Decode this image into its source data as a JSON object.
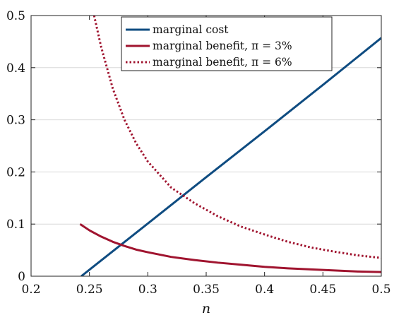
{
  "chart_data": {
    "type": "line",
    "xlabel": "n",
    "ylabel": "",
    "xlim": [
      0.2,
      0.5
    ],
    "ylim": [
      0,
      0.5
    ],
    "xticks": [
      0.2,
      0.25,
      0.3,
      0.35,
      0.4,
      0.45,
      0.5
    ],
    "yticks": [
      0,
      0.1,
      0.2,
      0.3,
      0.4,
      0.5
    ],
    "xtick_labels": [
      "0.2",
      "0.25",
      "0.3",
      "0.35",
      "0.4",
      "0.45",
      "0.5"
    ],
    "ytick_labels": [
      "0",
      "0.1",
      "0.2",
      "0.3",
      "0.4",
      "0.5"
    ],
    "grid": "horizontal",
    "legend_position": "top-right",
    "series": [
      {
        "name": "marginal cost",
        "legend_label": "marginal cost",
        "color": "#0f4c81",
        "style": "solid",
        "x": [
          0.243,
          0.3,
          0.35,
          0.4,
          0.45,
          0.5
        ],
        "y": [
          0.0,
          0.101,
          0.19,
          0.278,
          0.367,
          0.457
        ]
      },
      {
        "name": "marginal benefit, π = 3%",
        "legend_label": "marginal benefit, π = 3%",
        "color": "#a0142f",
        "style": "solid",
        "x": [
          0.242,
          0.25,
          0.26,
          0.27,
          0.28,
          0.29,
          0.3,
          0.32,
          0.34,
          0.36,
          0.38,
          0.4,
          0.42,
          0.44,
          0.46,
          0.48,
          0.5
        ],
        "y": [
          0.1,
          0.088,
          0.076,
          0.066,
          0.058,
          0.051,
          0.046,
          0.037,
          0.031,
          0.026,
          0.022,
          0.018,
          0.015,
          0.013,
          0.011,
          0.009,
          0.008
        ]
      },
      {
        "name": "marginal benefit, π = 6%",
        "legend_label": "marginal benefit, π = 6%",
        "color": "#a0142f",
        "style": "dotted",
        "x": [
          0.254,
          0.26,
          0.27,
          0.28,
          0.29,
          0.3,
          0.32,
          0.34,
          0.36,
          0.38,
          0.4,
          0.42,
          0.44,
          0.46,
          0.48,
          0.5
        ],
        "y": [
          0.5,
          0.44,
          0.36,
          0.3,
          0.255,
          0.22,
          0.17,
          0.14,
          0.115,
          0.095,
          0.08,
          0.066,
          0.055,
          0.047,
          0.04,
          0.035
        ]
      }
    ]
  }
}
